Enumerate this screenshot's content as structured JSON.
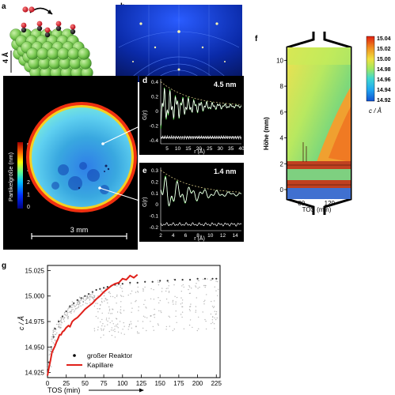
{
  "panels": {
    "a": {
      "label": "a",
      "dim_label": "4 Å"
    },
    "b": {
      "label": "b"
    },
    "c": {
      "label": "c",
      "colorbar_title": "Partikelgröße (nm)",
      "colorbar_ticks": [
        "5",
        "4",
        "3",
        "2",
        "1",
        "0"
      ],
      "scale_label": "3 mm"
    },
    "d": {
      "label": "d",
      "size_label": "4.5 nm",
      "ylabel": "G(r)",
      "xlabel": "r (Å)",
      "xticks": [
        "5",
        "10",
        "15",
        "20",
        "25",
        "30",
        "35",
        "40"
      ],
      "yticks": [
        "0.4",
        "0.2",
        "0",
        "-0.2",
        "-0.4"
      ]
    },
    "e": {
      "label": "e",
      "size_label": "1.4 nm",
      "ylabel": "G(r)",
      "xlabel": "r (Å)",
      "xticks": [
        "2",
        "4",
        "6",
        "8",
        "10",
        "12",
        "14"
      ],
      "yticks": [
        "0.3",
        "0.2",
        "0.1",
        "0",
        "-0.1",
        "-0.2"
      ]
    },
    "f": {
      "label": "f",
      "ylabel": "Höhe (mm)",
      "xlabel": "TOS (min)",
      "yticks": [
        "0",
        "2",
        "4",
        "6",
        "8",
        "10"
      ],
      "xticks": [
        "80",
        "120"
      ],
      "colorbar_ticks": [
        "15.04",
        "15.02",
        "15.00",
        "14.98",
        "14.96",
        "14.94",
        "14.92"
      ],
      "colorbar_title": "c / Å",
      "colors": [
        "#1050d0",
        "#20a8f0",
        "#40d8d0",
        "#a0e860",
        "#f0e040",
        "#f09020",
        "#e02010"
      ]
    },
    "g": {
      "label": "g"
    }
  },
  "chart_data": {
    "type": "scatter",
    "xlabel": "TOS (min)",
    "ylabel": "c / Å",
    "xlim": [
      0,
      230
    ],
    "ylim": [
      14.92,
      15.03
    ],
    "xticks": [
      "0",
      "25",
      "50",
      "75",
      "100",
      "125",
      "150",
      "175",
      "200",
      "225"
    ],
    "yticks": [
      "15.025",
      "15.000",
      "14.975",
      "14.950",
      "14.925"
    ],
    "legend": {
      "placement": "bottom-center",
      "entries": [
        "großer Reaktor",
        "Kapillare"
      ]
    },
    "series": [
      {
        "name": "großer Reaktor",
        "kind": "scatter",
        "color": "#333333",
        "x": [
          2,
          5,
          8,
          10,
          15,
          20,
          25,
          30,
          35,
          40,
          45,
          50,
          55,
          60,
          65,
          70,
          75,
          80,
          85,
          90,
          95,
          100,
          110,
          120,
          130,
          140,
          150,
          160,
          170,
          180,
          190,
          200,
          210,
          220,
          225
        ],
        "y": [
          14.935,
          14.95,
          14.96,
          14.968,
          14.975,
          14.98,
          14.985,
          14.99,
          14.993,
          14.996,
          14.998,
          15.0,
          15.002,
          15.004,
          15.006,
          15.007,
          15.008,
          15.009,
          15.01,
          15.011,
          15.012,
          15.012,
          15.013,
          15.013,
          15.014,
          15.014,
          15.015,
          15.015,
          15.016,
          15.016,
          15.016,
          15.017,
          15.017,
          15.017,
          15.017
        ]
      },
      {
        "name": "Kapillare",
        "kind": "line",
        "color": "#e0201a",
        "x": [
          0,
          2,
          4,
          6,
          8,
          10,
          12,
          14,
          16,
          18,
          20,
          22,
          25,
          28,
          30,
          33,
          36,
          40,
          45,
          50,
          55,
          60,
          65,
          70,
          75,
          80,
          85,
          90,
          95,
          100,
          105,
          110,
          115,
          120
        ],
        "y": [
          14.922,
          14.93,
          14.937,
          14.945,
          14.948,
          14.951,
          14.955,
          14.958,
          14.962,
          14.962,
          14.965,
          14.966,
          14.969,
          14.971,
          14.97,
          14.975,
          14.977,
          14.979,
          14.983,
          14.987,
          14.99,
          14.993,
          14.997,
          15.0,
          15.004,
          15.007,
          15.01,
          15.012,
          15.013,
          15.017,
          15.016,
          15.02,
          15.018,
          15.021
        ]
      }
    ]
  }
}
